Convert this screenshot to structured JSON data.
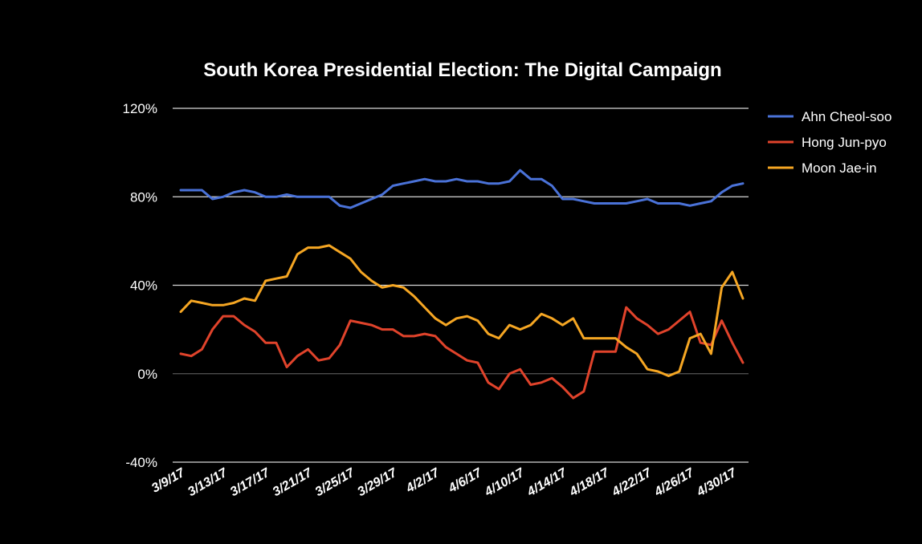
{
  "chart_data": {
    "type": "line",
    "title": "South Korea Presidential Election: The Digital Campaign",
    "xlabel": "",
    "ylabel": "",
    "ylim": [
      -40,
      120
    ],
    "yticks": [
      -40,
      0,
      40,
      80,
      120
    ],
    "ytick_labels": [
      "-40%",
      "0%",
      "40%",
      "80%",
      "120%"
    ],
    "x_tick_labels": [
      "3/9/17",
      "3/13/17",
      "3/17/17",
      "3/21/17",
      "3/25/17",
      "3/29/17",
      "4/2/17",
      "4/6/17",
      "4/10/17",
      "4/14/17",
      "4/18/17",
      "4/22/17",
      "4/26/17",
      "4/30/17"
    ],
    "x_tick_every": 4,
    "legend_position": "right",
    "series": [
      {
        "name": "Ahn Cheol-soo",
        "color": "#4a72d8",
        "values": [
          83,
          83,
          83,
          79,
          80,
          82,
          83,
          82,
          80,
          80,
          81,
          80,
          80,
          80,
          80,
          76,
          75,
          77,
          79,
          81,
          85,
          86,
          87,
          88,
          87,
          87,
          88,
          87,
          87,
          86,
          86,
          87,
          92,
          88,
          88,
          85,
          79,
          79,
          78,
          77,
          77,
          77,
          77,
          78,
          79,
          77,
          77,
          77,
          76,
          77,
          78,
          82,
          85,
          86
        ]
      },
      {
        "name": "Hong Jun-pyo",
        "color": "#e0432b",
        "values": [
          9,
          8,
          11,
          20,
          26,
          26,
          22,
          19,
          14,
          14,
          3,
          8,
          11,
          6,
          7,
          13,
          24,
          23,
          22,
          20,
          20,
          17,
          17,
          18,
          17,
          12,
          9,
          6,
          5,
          -4,
          -7,
          0,
          2,
          -5,
          -4,
          -2,
          -6,
          -11,
          -8,
          10,
          10,
          10,
          30,
          25,
          22,
          18,
          20,
          24,
          28,
          14,
          13,
          24,
          14,
          5
        ]
      },
      {
        "name": "Moon Jae-in",
        "color": "#f5a623",
        "values": [
          28,
          33,
          32,
          31,
          31,
          32,
          34,
          33,
          42,
          43,
          44,
          54,
          57,
          57,
          58,
          55,
          52,
          46,
          42,
          39,
          40,
          39,
          35,
          30,
          25,
          22,
          25,
          26,
          24,
          18,
          16,
          22,
          20,
          22,
          27,
          25,
          22,
          25,
          16,
          16,
          16,
          16,
          12,
          9,
          2,
          1,
          -1,
          1,
          16,
          18,
          9,
          39,
          46,
          34
        ]
      }
    ]
  }
}
